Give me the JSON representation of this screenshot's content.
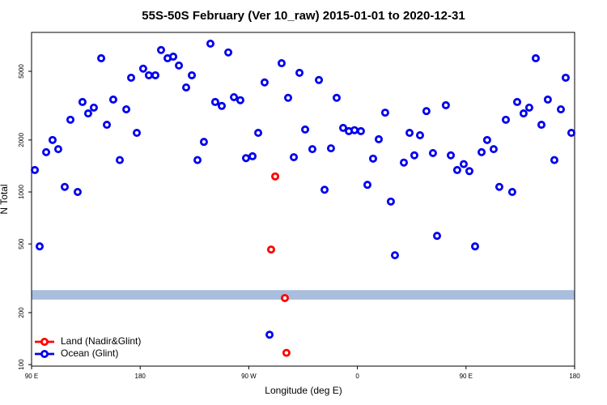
{
  "chart_data": {
    "type": "scatter",
    "title": "55S-50S February (Ver 10_raw)   2015-01-01 to 2020-12-31",
    "x_label": "Longitude (deg E)",
    "y_label": "N Total",
    "xlim": [
      90,
      540
    ],
    "xticks": [
      {
        "value": 90,
        "label": "90 E"
      },
      180,
      {
        "value": 270,
        "label": "90 W"
      },
      {
        "value": 360,
        "label": "0"
      },
      {
        "value": 450,
        "label": "90 E"
      },
      {
        "value": 540,
        "label": "180"
      }
    ],
    "ylim": [
      98,
      8400
    ],
    "log_y": true,
    "yticks": [
      100,
      200,
      500,
      1000,
      2000,
      5000
    ],
    "band": [
      238,
      270
    ],
    "band_color": "#a9bedd",
    "legend": "bottom-left",
    "series": [
      {
        "name": "Land (Nadir&Glint)",
        "color": "#ff0000",
        "x": [
          288.5,
          291.9,
          299.9,
          301.2
        ],
        "values": [
          464,
          1230,
          243,
          117
        ]
      },
      {
        "name": "Ocean (Glint)",
        "color": "#0000ee",
        "x": [
          92.7,
          96.7,
          102.1,
          107.4,
          112.1,
          117.5,
          122.2,
          128.2,
          132.2,
          136.9,
          141.6,
          147.7,
          152.4,
          157.7,
          163.1,
          168.5,
          172.5,
          177.2,
          182.5,
          187.2,
          192.6,
          197.3,
          202.7,
          207.4,
          212.1,
          218.1,
          222.8,
          227.5,
          232.8,
          238.2,
          242.2,
          247.6,
          253.0,
          257.7,
          263.0,
          267.7,
          273.1,
          277.8,
          283.1,
          287.2,
          297.2,
          302.6,
          307.3,
          312.0,
          316.7,
          322.7,
          328.1,
          332.8,
          338.1,
          342.8,
          348.2,
          352.9,
          357.6,
          362.9,
          368.3,
          373.0,
          377.7,
          383.0,
          387.7,
          391.1,
          398.5,
          403.2,
          407.2,
          411.9,
          417.2,
          422.6,
          426.0,
          433.3,
          437.4,
          442.7,
          448.1,
          452.8,
          457.5,
          462.9,
          467.5,
          472.9,
          477.6,
          483.0,
          488.3,
          492.4,
          497.7,
          502.4,
          507.8,
          512.5,
          517.8,
          523.2,
          528.6,
          532.6,
          537.3
        ],
        "values": [
          1340,
          484,
          1700,
          2000,
          1770,
          1070,
          2620,
          1000,
          3320,
          2850,
          3080,
          5950,
          2450,
          3430,
          1530,
          3010,
          4590,
          2200,
          5180,
          4740,
          4740,
          6640,
          5950,
          6080,
          5400,
          4030,
          4740,
          1530,
          1950,
          7230,
          3320,
          3150,
          6430,
          3540,
          3400,
          1570,
          1610,
          2200,
          4310,
          149,
          5570,
          3510,
          1590,
          4900,
          2300,
          1770,
          4450,
          1030,
          1790,
          3510,
          2350,
          2250,
          2280,
          2250,
          1100,
          1560,
          2020,
          2880,
          880,
          430,
          1480,
          2200,
          1630,
          2130,
          2940,
          1680,
          557,
          3180,
          1630,
          1340,
          1450,
          1320,
          484,
          1700,
          2000,
          1770,
          1070,
          2620,
          1000,
          3320,
          2850,
          3080,
          5950,
          2450,
          3430,
          1530,
          3010,
          4590,
          2200
        ]
      }
    ]
  }
}
